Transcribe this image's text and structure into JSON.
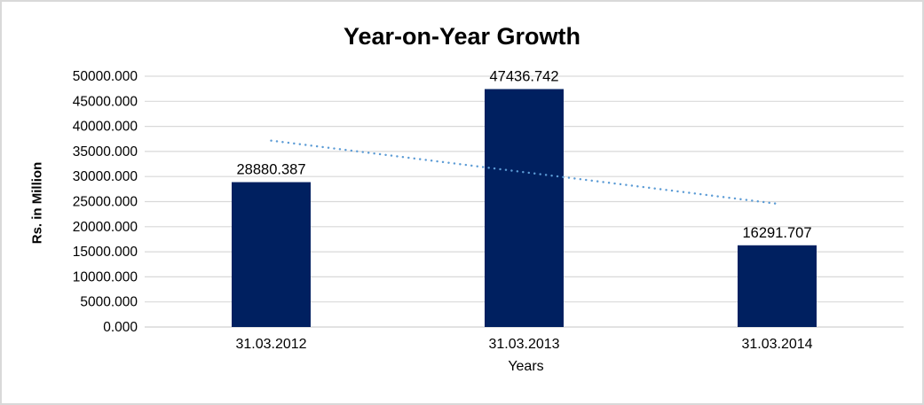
{
  "window": {
    "background_color": "#ffffff",
    "border_color": "#d9d9d9"
  },
  "chart_data": {
    "type": "bar",
    "title": "Year-on-Year Growth",
    "xlabel": "Years",
    "ylabel": "Rs. in Million",
    "categories": [
      "31.03.2012",
      "31.03.2013",
      "31.03.2014"
    ],
    "values": [
      28880.387,
      47436.742,
      16291.707
    ],
    "data_labels": [
      "28880.387",
      "47436.742",
      "16291.707"
    ],
    "ylim": [
      0,
      50000
    ],
    "ytick_step": 5000,
    "ytick_labels": [
      "0.000",
      "5000.000",
      "10000.000",
      "15000.000",
      "20000.000",
      "25000.000",
      "30000.000",
      "35000.000",
      "40000.000",
      "45000.000",
      "50000.000"
    ],
    "grid": "horizontal",
    "legend_position": "none",
    "bar_color": "#002060",
    "trendline": {
      "type": "linear",
      "style": "dotted",
      "color": "#5b9bd5"
    },
    "gridline_color": "#d9d9d9",
    "axis_line_color": "#d0d0d0",
    "text_color": "#000000"
  }
}
